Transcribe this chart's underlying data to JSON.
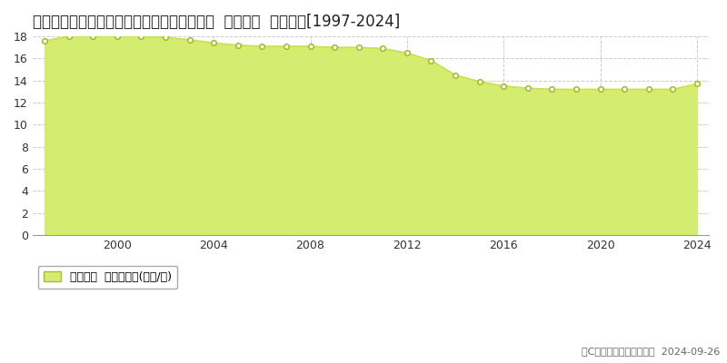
{
  "title": "青森県青森市大字石江字高間１４９番７９外  基準地価  地価推移[1997-2024]",
  "years": [
    1997,
    1998,
    1999,
    2000,
    2001,
    2002,
    2003,
    2004,
    2005,
    2006,
    2007,
    2008,
    2009,
    2010,
    2011,
    2012,
    2013,
    2014,
    2015,
    2016,
    2017,
    2018,
    2019,
    2020,
    2021,
    2022,
    2023,
    2024
  ],
  "values": [
    17.6,
    18.0,
    18.0,
    18.0,
    18.0,
    17.9,
    17.7,
    17.4,
    17.2,
    17.1,
    17.1,
    17.1,
    17.0,
    17.0,
    16.9,
    16.5,
    15.8,
    14.5,
    13.9,
    13.5,
    13.3,
    13.2,
    13.2,
    13.2,
    13.2,
    13.2,
    13.2,
    13.7
  ],
  "line_color": "#c8e050",
  "fill_color": "#d4ed6e",
  "marker_facecolor": "#ffffff",
  "marker_edgecolor": "#aabb33",
  "background_color": "#ffffff",
  "plot_bg_color": "#ffffff",
  "grid_color": "#cccccc",
  "ylim": [
    0,
    18
  ],
  "yticks": [
    0,
    2,
    4,
    6,
    8,
    10,
    12,
    14,
    16,
    18
  ],
  "xticks": [
    2000,
    2004,
    2008,
    2012,
    2016,
    2020,
    2024
  ],
  "xlim_min": 1996.5,
  "xlim_max": 2024.5,
  "legend_label": "基準地価  平均坪単価(万円/坪)",
  "copyright_text": "（C）土地価格ドットコム  2024-09-26",
  "title_fontsize": 12,
  "tick_fontsize": 9,
  "legend_fontsize": 9,
  "copyright_fontsize": 8
}
